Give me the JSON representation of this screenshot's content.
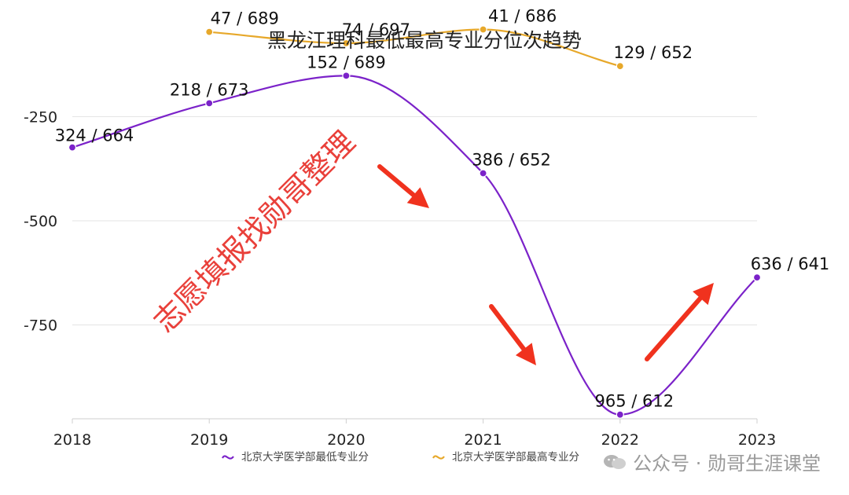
{
  "chart_data": {
    "type": "line",
    "title": "黑龙江理科最低最高专业分位次趋势",
    "categories": [
      "2018",
      "2019",
      "2020",
      "2021",
      "2022",
      "2023"
    ],
    "yticks": [
      "-250",
      "-500",
      "-750"
    ],
    "ylim": [
      -975,
      -140
    ],
    "series": [
      {
        "name": "北京大学医学部最低专业分",
        "color": "#7b22c9",
        "values": [
          -324,
          -218,
          -152,
          -386,
          -965,
          -636
        ],
        "labels": [
          "324 / 664",
          "218 / 673",
          "152 / 689",
          "386 / 652",
          "965 / 612",
          "636 / 641"
        ]
      },
      {
        "name": "北京大学医学部最高专业分",
        "color": "#e7a82a",
        "values": [
          null,
          -47,
          -74,
          -41,
          -129,
          null
        ],
        "labels": [
          "",
          "47 / 689",
          "74 / 697",
          "41 / 686",
          "129 / 652",
          ""
        ]
      }
    ],
    "legend_position": "bottom",
    "grid": true
  },
  "watermark": "志愿填报找勋哥整理",
  "brand": "公众号 · 勋哥生涯课堂",
  "arrow_color": "#f0321e"
}
